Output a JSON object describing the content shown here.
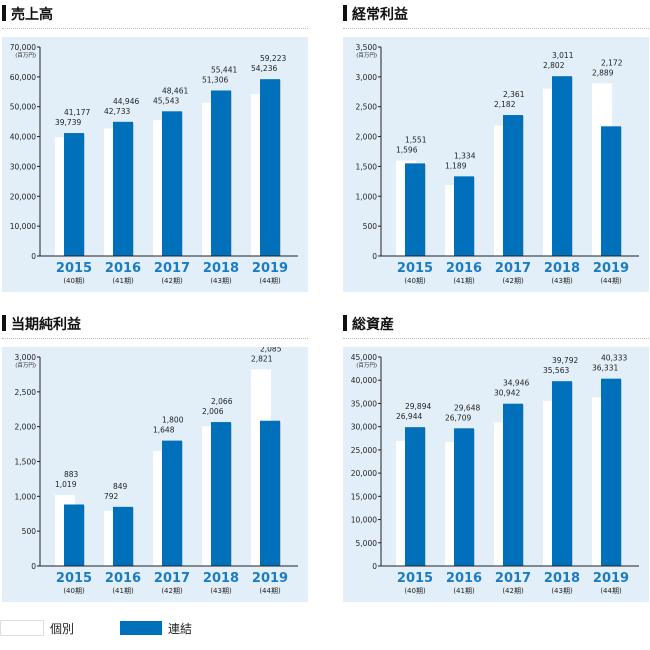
{
  "legend": {
    "individual": "個別",
    "consolidated": "連結"
  },
  "colors": {
    "individual": "#ffffff",
    "consolidated": "#0070bb",
    "year": "#1a7cc4",
    "bg": "#e3eff8"
  },
  "chart_data": [
    {
      "type": "bar",
      "title": "売上高",
      "unit": "(百万円)",
      "ymax": 70000,
      "ystep": 10000,
      "categories": [
        "2015",
        "2016",
        "2017",
        "2018",
        "2019"
      ],
      "periods": [
        "(40期)",
        "(41期)",
        "(42期)",
        "(43期)",
        "(44期)"
      ],
      "series": [
        {
          "name": "個別",
          "values": [
            39739,
            42733,
            45543,
            51306,
            54236
          ],
          "labels": [
            "39,739",
            "42,733",
            "45,543",
            "51,306",
            "54,236"
          ]
        },
        {
          "name": "連結",
          "values": [
            41177,
            44946,
            48461,
            55441,
            59223
          ],
          "labels": [
            "41,177",
            "44,946",
            "48,461",
            "55,441",
            "59,223"
          ]
        }
      ],
      "yticks": [
        "0",
        "10,000",
        "20,000",
        "30,000",
        "40,000",
        "50,000",
        "60,000",
        "70,000"
      ]
    },
    {
      "type": "bar",
      "title": "経常利益",
      "unit": "(百万円)",
      "ymax": 3500,
      "ystep": 500,
      "categories": [
        "2015",
        "2016",
        "2017",
        "2018",
        "2019"
      ],
      "periods": [
        "(40期)",
        "(41期)",
        "(42期)",
        "(43期)",
        "(44期)"
      ],
      "series": [
        {
          "name": "個別",
          "values": [
            1596,
            1189,
            2182,
            2802,
            2889
          ],
          "labels": [
            "1,596",
            "1,189",
            "2,182",
            "2,802",
            "2,889"
          ]
        },
        {
          "name": "連結",
          "values": [
            1551,
            1334,
            2361,
            3011,
            2172
          ],
          "labels": [
            "1,551",
            "1,334",
            "2,361",
            "3,011",
            "2,172"
          ]
        }
      ],
      "yticks": [
        "0",
        "500",
        "1,000",
        "1,500",
        "2,000",
        "2,500",
        "3,000",
        "3,500"
      ]
    },
    {
      "type": "bar",
      "title": "当期純利益",
      "unit": "(百万円)",
      "ymax": 3000,
      "ystep": 500,
      "categories": [
        "2015",
        "2016",
        "2017",
        "2018",
        "2019"
      ],
      "periods": [
        "(40期)",
        "(41期)",
        "(42期)",
        "(43期)",
        "(44期)"
      ],
      "series": [
        {
          "name": "個別",
          "values": [
            1019,
            792,
            1648,
            2006,
            2821
          ],
          "labels": [
            "1,019",
            "792",
            "1,648",
            "2,006",
            "2,821"
          ]
        },
        {
          "name": "連結",
          "values": [
            883,
            849,
            1800,
            2066,
            2085
          ],
          "labels": [
            "883",
            "849",
            "1,800",
            "2,066",
            "2,085"
          ]
        }
      ],
      "yticks": [
        "0",
        "500",
        "1,000",
        "1,500",
        "2,000",
        "2,500",
        "3,000"
      ]
    },
    {
      "type": "bar",
      "title": "総資産",
      "unit": "(百万円)",
      "ymax": 45000,
      "ystep": 5000,
      "categories": [
        "2015",
        "2016",
        "2017",
        "2018",
        "2019"
      ],
      "periods": [
        "(40期)",
        "(41期)",
        "(42期)",
        "(43期)",
        "(44期)"
      ],
      "series": [
        {
          "name": "個別",
          "values": [
            26944,
            26709,
            30942,
            35563,
            36331
          ],
          "labels": [
            "26,944",
            "26,709",
            "30,942",
            "35,563",
            "36,331"
          ]
        },
        {
          "name": "連結",
          "values": [
            29894,
            29648,
            34946,
            39792,
            40333
          ],
          "labels": [
            "29,894",
            "29,648",
            "34,946",
            "39,792",
            "40,333"
          ]
        }
      ],
      "yticks": [
        "0",
        "5,000",
        "10,000",
        "15,000",
        "20,000",
        "25,000",
        "30,000",
        "35,000",
        "40,000",
        "45,000"
      ]
    }
  ]
}
